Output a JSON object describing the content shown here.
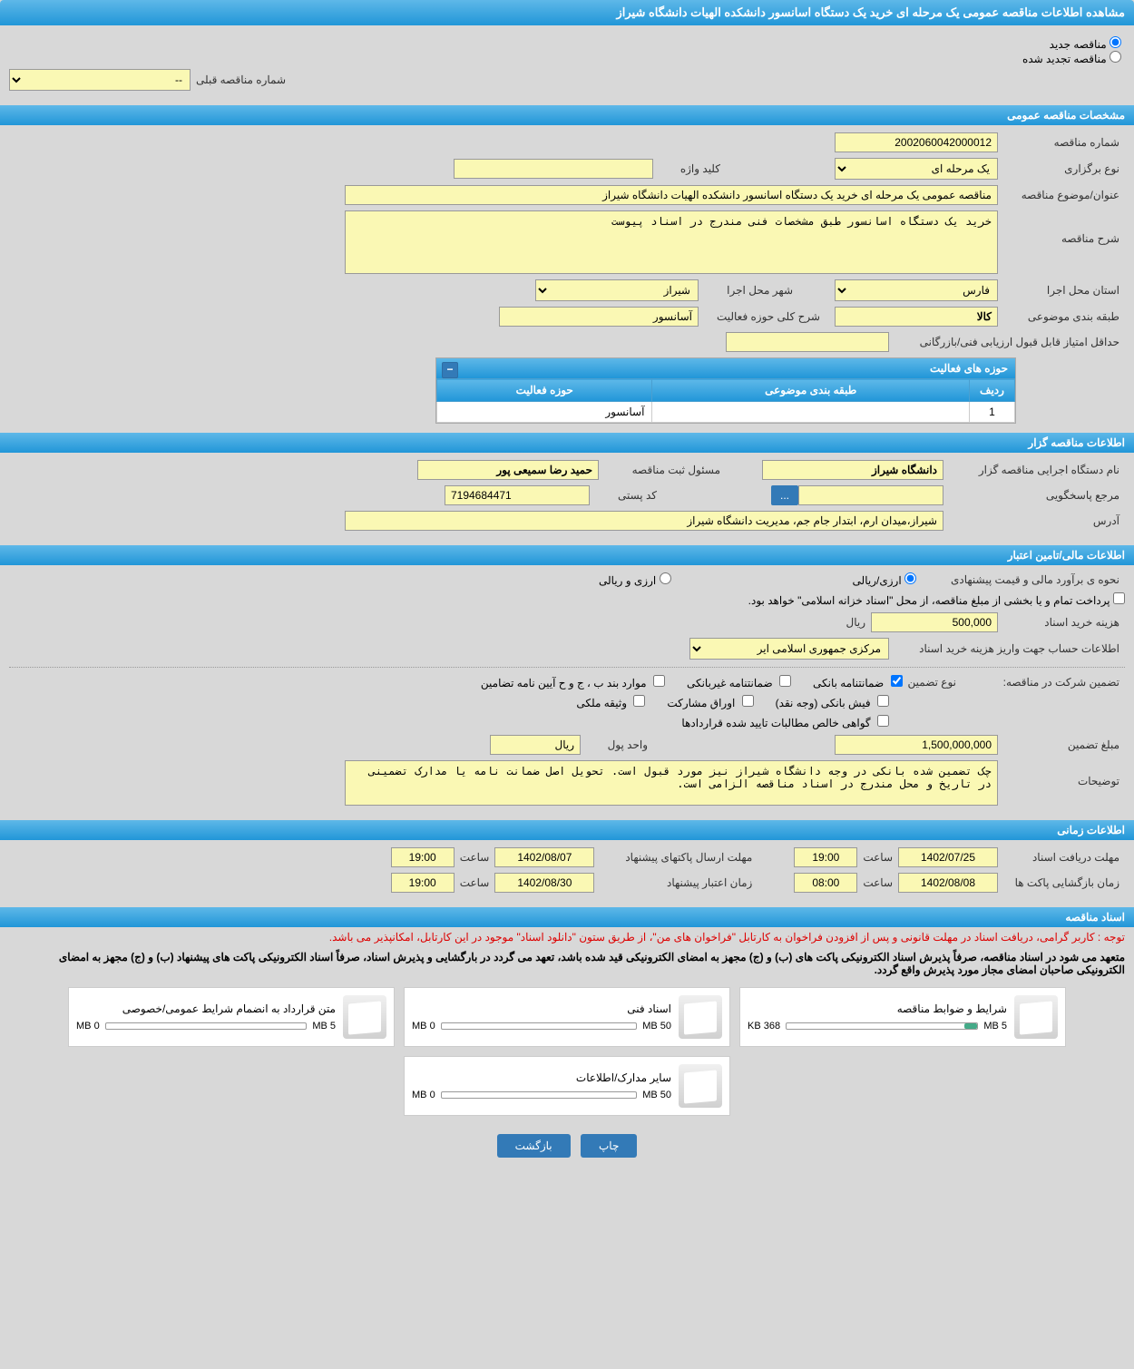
{
  "page_title": "مشاهده اطلاعات مناقصه عمومی یک مرحله ای خرید یک دستگاه اسانسور دانشکده الهیات دانشگاه شیراز",
  "tender_type": {
    "new_label": "مناقصه جدید",
    "renewed_label": "مناقصه تجدید شده",
    "prev_number_label": "شماره مناقصه قبلی",
    "prev_number_value": "--"
  },
  "sections": {
    "general": "مشخصات مناقصه عمومی",
    "organizer": "اطلاعات مناقصه گزار",
    "financial": "اطلاعات مالی/تامین اعتبار",
    "timing": "اطلاعات زمانی",
    "documents": "اسناد مناقصه"
  },
  "general": {
    "number_label": "شماره مناقصه",
    "number_value": "2002060042000012",
    "type_label": "نوع برگزاری",
    "type_value": "یک مرحله ای",
    "keyword_label": "کلید واژه",
    "keyword_value": "",
    "subject_label": "عنوان/موضوع مناقصه",
    "subject_value": "مناقصه عمومی یک مرحله ای خرید یک دستگاه اسانسور دانشکده الهیات دانشگاه شیراز",
    "desc_label": "شرح مناقصه",
    "desc_value": "خرید یک دستگاه اسانسور طبق مشخصات فنی مندرج در اسناد پیوست",
    "province_label": "استان محل اجرا",
    "province_value": "فارس",
    "city_label": "شهر محل اجرا",
    "city_value": "شیراز",
    "category_label": "طبقه بندی موضوعی",
    "category_value": "کالا",
    "activity_desc_label": "شرح کلی حوزه فعالیت",
    "activity_desc_value": "آسانسور",
    "min_score_label": "حداقل امتیاز قابل قبول ارزیابی فنی/بازرگانی",
    "min_score_value": ""
  },
  "activity_grid": {
    "title": "حوزه های فعالیت",
    "col_row": "ردیف",
    "col_category": "طبقه بندی موضوعی",
    "col_activity": "حوزه فعالیت",
    "rows": [
      {
        "idx": "1",
        "category": "",
        "activity": "آسانسور"
      }
    ]
  },
  "organizer": {
    "exec_label": "نام دستگاه اجرایی مناقصه گزار",
    "exec_value": "دانشگاه شیراز",
    "registrar_label": "مسئول ثبت مناقصه",
    "registrar_value": "حمید رضا سمیعی پور",
    "contact_label": "مرجع پاسخگویی",
    "contact_value": "",
    "postal_label": "کد پستی",
    "postal_value": "7194684471",
    "address_label": "آدرس",
    "address_value": "شیراز،میدان ارم، ابتدار جام جم، مدیریت دانشگاه شیراز",
    "btn_more": "..."
  },
  "financial": {
    "estimate_label": "نحوه ی برآورد مالی و قیمت پیشنهادی",
    "currency_rial": "ارزی/ریالی",
    "currency_foreign": "ارزی و ریالی",
    "source_text": "پرداخت تمام و یا بخشی از مبلغ مناقصه، از محل \"اسناد خزانه اسلامی\" خواهد بود.",
    "doc_cost_label": "هزینه خرید اسناد",
    "doc_cost_value": "500,000",
    "rial_label": "ریال",
    "account_label": "اطلاعات حساب جهت واریز هزینه خرید اسناد",
    "account_value": "مرکزی جمهوری اسلامی ایر",
    "guarantee_section_label": "تضمین شرکت در مناقصه:",
    "guarantee_type_label": "نوع تضمین",
    "guarantee_types": {
      "bank": "ضمانتنامه بانکی",
      "nonbank": "ضمانتنامه غیربانکی",
      "cases": "موارد بند ب ، ج و ح آیین نامه تضامین",
      "receipt": "فیش بانکی (وجه نقد)",
      "bonds": "اوراق مشارکت",
      "property": "وثیقه ملکی",
      "contract": "گواهی خالص مطالبات تایید شده قراردادها"
    },
    "guarantee_amount_label": "مبلغ تضمین",
    "guarantee_amount_value": "1,500,000,000",
    "currency_unit_label": "واحد پول",
    "currency_unit_value": "ریال",
    "notes_label": "توضیحات",
    "notes_value": "چک تضمین شده بانکی در وجه دانشگاه شیراز نیز مورد قبول است. تحویل اصل ضمانت نامه یا مدارک تضمینی در تاریخ و محل مندرج در اسناد مناقصه الزامی است."
  },
  "timing": {
    "receive_label": "مهلت دریافت اسناد",
    "receive_date": "1402/07/25",
    "receive_time_label": "ساعت",
    "receive_time": "19:00",
    "submit_label": "مهلت ارسال پاکتهای پیشنهاد",
    "submit_date": "1402/08/07",
    "submit_time": "19:00",
    "open_label": "زمان بازگشایی پاکت ها",
    "open_date": "1402/08/08",
    "open_time": "08:00",
    "validity_label": "زمان اعتبار پیشنهاد",
    "validity_date": "1402/08/30",
    "validity_time": "19:00"
  },
  "documents": {
    "note1": "توجه : کاربر گرامی، دریافت اسناد در مهلت قانونی و پس از افزودن فراخوان به کارتابل \"فراخوان های من\"، از طریق ستون \"دانلود اسناد\" موجود در این کارتابل، امکانپذیر می باشد.",
    "note2": "متعهد می شود در اسناد مناقصه، صرفاً پذیرش اسناد الکترونیکی پاکت های (ب) و (ج) مجهز به امضای الکترونیکی قید شده باشد، تعهد می گردد در بارگشایی و پذیرش اسناد، صرفاً اسناد الکترونیکی پاکت های پیشنهاد (ب) و (ج) مجهز به امضای الکترونیکی صاحبان امضای مجاز مورد پذیرش واقع گردد.",
    "files": [
      {
        "title": "شرایط و ضوابط مناقصه",
        "used": "368 KB",
        "total": "5 MB",
        "pct": 7
      },
      {
        "title": "اسناد فنی",
        "used": "0 MB",
        "total": "50 MB",
        "pct": 0
      },
      {
        "title": "متن قرارداد به انضمام شرایط عمومی/خصوصی",
        "used": "0 MB",
        "total": "5 MB",
        "pct": 0
      },
      {
        "title": "سایر مدارک/اطلاعات",
        "used": "0 MB",
        "total": "50 MB",
        "pct": 0
      }
    ]
  },
  "footer": {
    "print": "چاپ",
    "back": "بازگشت"
  },
  "colors": {
    "header_bg": "#2196d8",
    "field_bg": "#faf8b4",
    "body_bg": "#d8d8d8",
    "btn_bg": "#337ab7"
  }
}
